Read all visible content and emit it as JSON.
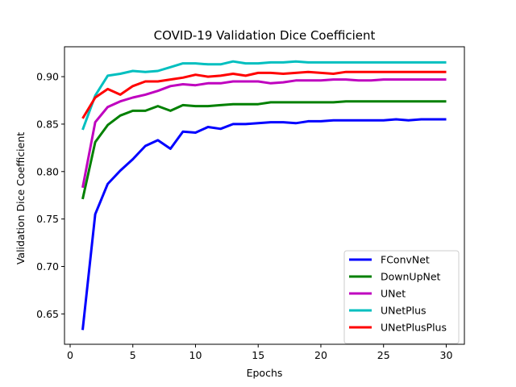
{
  "chart_data": {
    "type": "line",
    "title": "COVID-19 Validation Dice Coefficient",
    "xlabel": "Epochs",
    "ylabel": "Validation Dice Coefficient",
    "xlim": [
      -0.45,
      31.45
    ],
    "ylim": [
      0.618,
      0.9315
    ],
    "xticks": [
      0,
      5,
      10,
      15,
      20,
      25,
      30
    ],
    "yticks": [
      0.65,
      0.7,
      0.75,
      0.8,
      0.85,
      0.9
    ],
    "ytick_labels": [
      "0.65",
      "0.70",
      "0.75",
      "0.80",
      "0.85",
      "0.90"
    ],
    "grid": false,
    "legend_position": "lower-right",
    "x": [
      1,
      2,
      3,
      4,
      5,
      6,
      7,
      8,
      9,
      10,
      11,
      12,
      13,
      14,
      15,
      16,
      17,
      18,
      19,
      20,
      21,
      22,
      23,
      24,
      25,
      26,
      27,
      28,
      29,
      30
    ],
    "series": [
      {
        "name": "FConvNet",
        "color": "#0000ff",
        "values": [
          0.633,
          0.755,
          0.787,
          0.801,
          0.813,
          0.827,
          0.833,
          0.824,
          0.842,
          0.841,
          0.847,
          0.845,
          0.85,
          0.85,
          0.851,
          0.852,
          0.852,
          0.851,
          0.853,
          0.853,
          0.854,
          0.854,
          0.854,
          0.854,
          0.854,
          0.855,
          0.854,
          0.855,
          0.855,
          0.855
        ]
      },
      {
        "name": "DownUpNet",
        "color": "#008000",
        "values": [
          0.771,
          0.831,
          0.849,
          0.859,
          0.864,
          0.864,
          0.869,
          0.864,
          0.87,
          0.869,
          0.869,
          0.87,
          0.871,
          0.871,
          0.871,
          0.873,
          0.873,
          0.873,
          0.873,
          0.873,
          0.873,
          0.874,
          0.874,
          0.874,
          0.874,
          0.874,
          0.874,
          0.874,
          0.874,
          0.874
        ]
      },
      {
        "name": "UNet",
        "color": "#bf00bf",
        "values": [
          0.783,
          0.852,
          0.868,
          0.874,
          0.878,
          0.881,
          0.885,
          0.89,
          0.892,
          0.891,
          0.893,
          0.893,
          0.895,
          0.895,
          0.895,
          0.893,
          0.894,
          0.896,
          0.896,
          0.896,
          0.897,
          0.897,
          0.896,
          0.896,
          0.897,
          0.897,
          0.897,
          0.897,
          0.897,
          0.897
        ]
      },
      {
        "name": "UNetPlus",
        "color": "#00bfbf",
        "values": [
          0.844,
          0.88,
          0.901,
          0.903,
          0.906,
          0.905,
          0.906,
          0.91,
          0.914,
          0.914,
          0.913,
          0.913,
          0.916,
          0.914,
          0.914,
          0.915,
          0.915,
          0.916,
          0.915,
          0.915,
          0.915,
          0.915,
          0.915,
          0.915,
          0.915,
          0.915,
          0.915,
          0.915,
          0.915,
          0.915
        ]
      },
      {
        "name": "UNetPlusPlus",
        "color": "#ff0000",
        "values": [
          0.856,
          0.878,
          0.887,
          0.881,
          0.89,
          0.895,
          0.895,
          0.897,
          0.899,
          0.902,
          0.9,
          0.901,
          0.903,
          0.901,
          0.904,
          0.904,
          0.903,
          0.904,
          0.905,
          0.904,
          0.903,
          0.905,
          0.905,
          0.905,
          0.905,
          0.905,
          0.905,
          0.905,
          0.905,
          0.905
        ]
      }
    ]
  }
}
